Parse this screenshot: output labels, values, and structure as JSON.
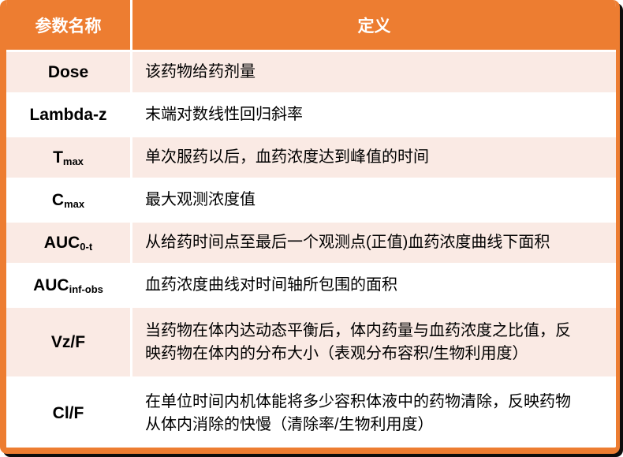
{
  "table": {
    "header": {
      "param_col": "参数名称",
      "def_col": "定义"
    },
    "rows": [
      {
        "param_base": "Dose",
        "param_sub": "",
        "definition": "该药物给药剂量"
      },
      {
        "param_base": "Lambda-z",
        "param_sub": "",
        "definition": "末端对数线性回归斜率"
      },
      {
        "param_base": "T",
        "param_sub": "max",
        "definition": "单次服药以后，血药浓度达到峰值的时间"
      },
      {
        "param_base": "C",
        "param_sub": "max",
        "definition": "最大观测浓度值"
      },
      {
        "param_base": "AUC",
        "param_sub": "0-t",
        "definition": "从给药时间点至最后一个观测点(正值)血药浓度曲线下面积"
      },
      {
        "param_base": "AUC",
        "param_sub": "inf-obs",
        "definition": "血药浓度曲线对时间轴所包围的面积"
      },
      {
        "param_base": "Vz/F",
        "param_sub": "",
        "definition": "当药物在体内达动态平衡后，体内药量与血药浓度之比值，反映药物在体内的分布大小（表观分布容积/生物利用度）"
      },
      {
        "param_base": "Cl/F",
        "param_sub": "",
        "definition": "在单位时间内机体能将多少容积体液中的药物清除，反映药物从体内消除的快慢（清除率/生物利用度）"
      }
    ],
    "colors": {
      "header_bg": "#ED7D31",
      "header_text": "#FFFFFF",
      "band_pink": "#FAEAE4",
      "band_white": "#FFFFFF",
      "body_text": "#000000",
      "edge_shadow": "#0D0D0D"
    }
  }
}
